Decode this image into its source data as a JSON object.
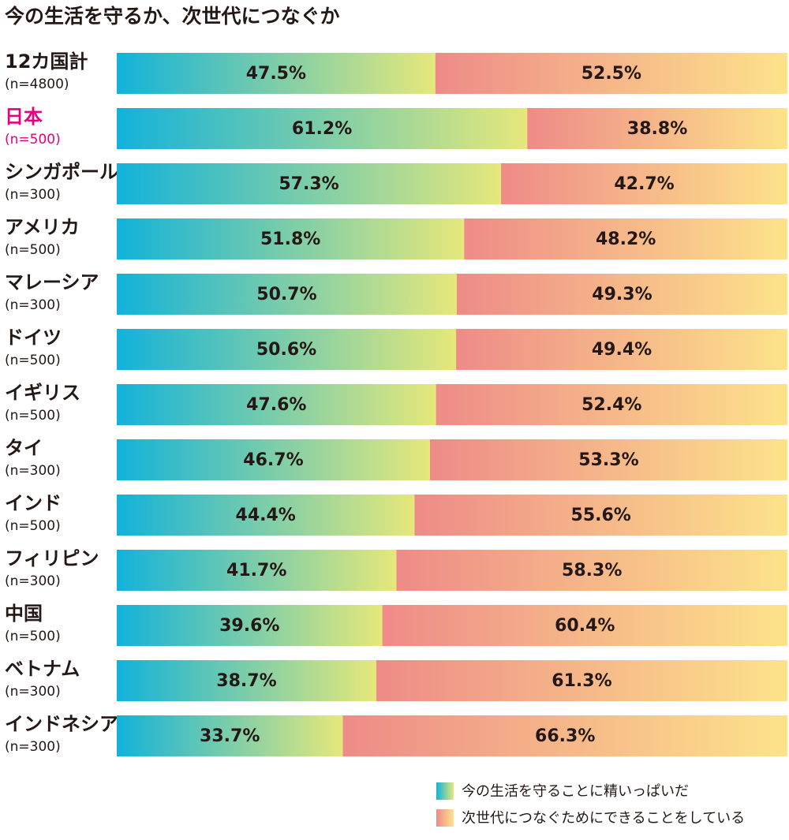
{
  "chart_data": {
    "type": "stacked_bar_horizontal",
    "title": "今の生活を守るか、次世代につなぐか",
    "categories": [
      "12カ国計",
      "日本",
      "シンガポール",
      "アメリカ",
      "マレーシア",
      "ドイツ",
      "イギリス",
      "タイ",
      "インド",
      "フィリピン",
      "中国",
      "ベトナム",
      "インドネシア"
    ],
    "category_notes": [
      "(n=4800)",
      "(n=500)",
      "(n=300)",
      "(n=500)",
      "(n=300)",
      "(n=500)",
      "(n=500)",
      "(n=300)",
      "(n=500)",
      "(n=300)",
      "(n=500)",
      "(n=300)",
      "(n=300)"
    ],
    "highlight_index": 1,
    "highlight_color": "#e4007f",
    "xlim": [
      0,
      100
    ],
    "legend": "bottom-right",
    "series": [
      {
        "name": "今の生活を守ることに精いっぱいだ",
        "color": "#12b2da",
        "color_end": "#e6e87a",
        "values": [
          47.5,
          61.2,
          57.3,
          51.8,
          50.7,
          50.6,
          47.6,
          46.7,
          44.4,
          41.7,
          39.6,
          38.7,
          33.7
        ],
        "value_labels": [
          "47.5%",
          "61.2%",
          "57.3%",
          "51.8%",
          "50.7%",
          "50.6%",
          "47.6%",
          "46.7%",
          "44.4%",
          "41.7%",
          "39.6%",
          "38.7%",
          "33.7%"
        ]
      },
      {
        "name": "次世代につなぐためにできることをしている",
        "color": "#ee8b88",
        "color_end": "#fde38a",
        "values": [
          52.5,
          38.8,
          42.7,
          48.2,
          49.3,
          49.4,
          52.4,
          53.3,
          55.6,
          58.3,
          60.4,
          61.3,
          66.3
        ],
        "value_labels": [
          "52.5%",
          "38.8%",
          "42.7%",
          "48.2%",
          "49.3%",
          "49.4%",
          "52.4%",
          "53.3%",
          "55.6%",
          "58.3%",
          "60.4%",
          "61.3%",
          "66.3%"
        ]
      }
    ]
  }
}
